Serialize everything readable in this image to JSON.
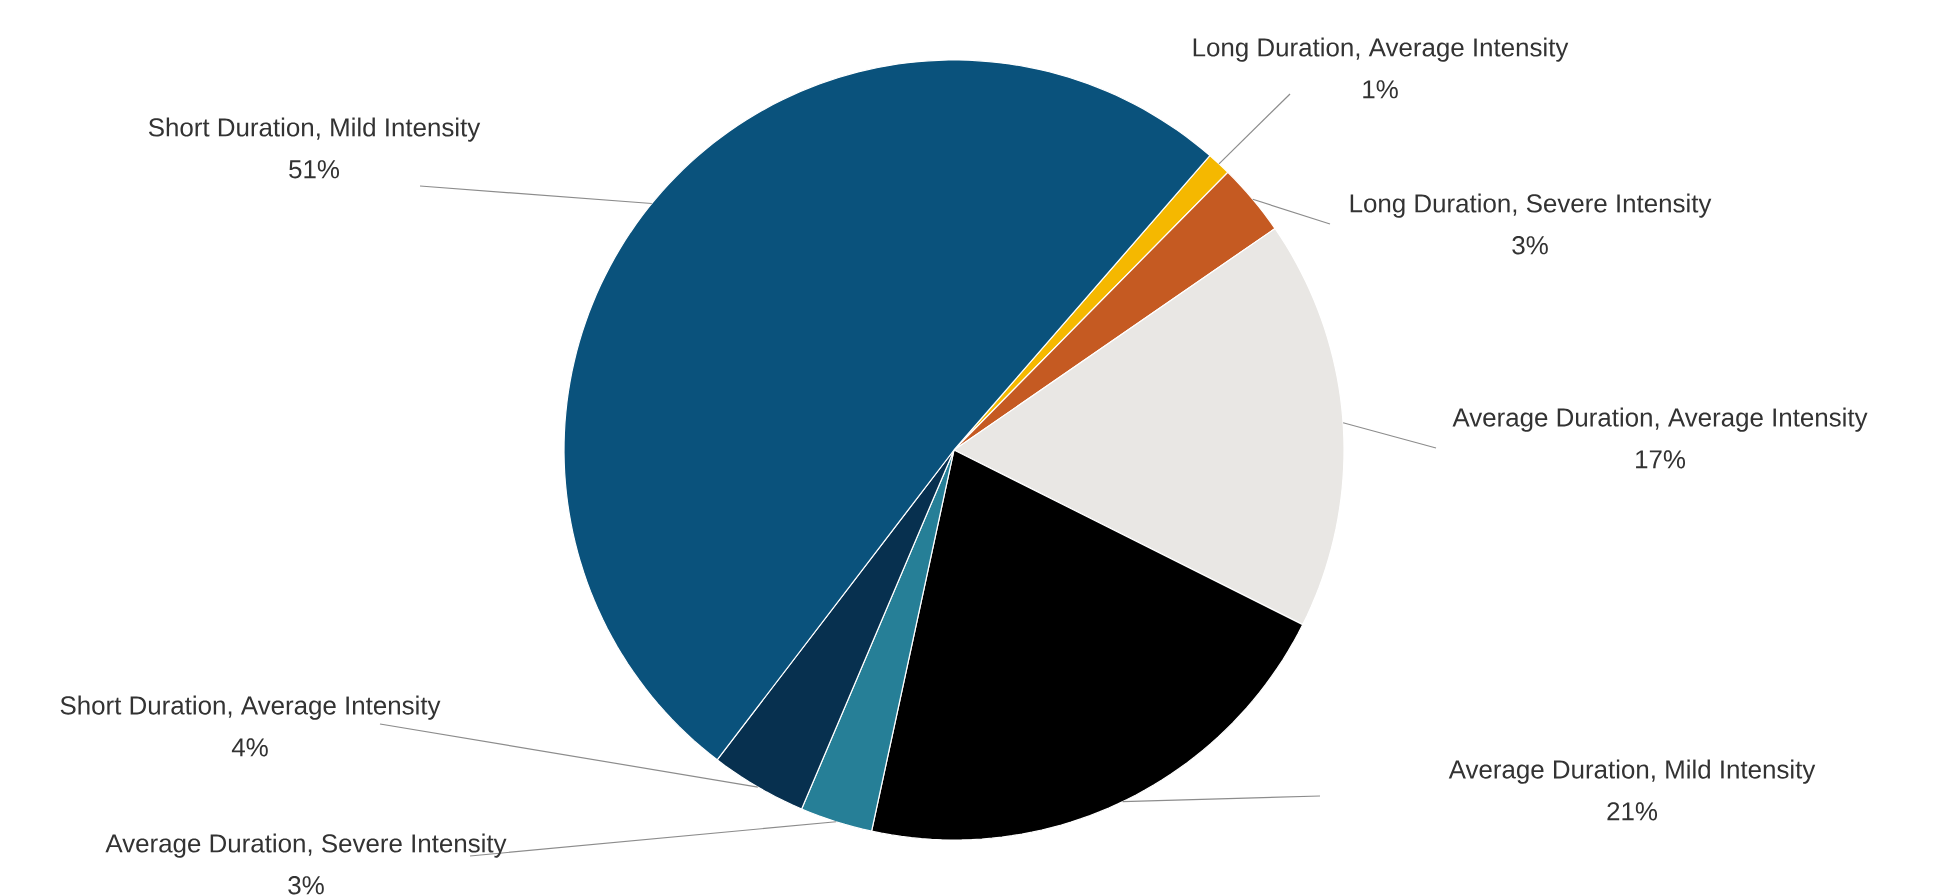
{
  "chart_data": {
    "type": "pie",
    "categories": [
      "Long Duration, Average Intensity",
      "Long Duration, Severe Intensity",
      "Average Duration, Average Intensity",
      "Average Duration, Mild Intensity",
      "Average Duration, Severe Intensity",
      "Short Duration, Average Intensity",
      "Short Duration, Mild Intensity"
    ],
    "values": [
      1,
      3,
      17,
      21,
      3,
      4,
      51
    ],
    "value_labels": [
      "1%",
      "3%",
      "17%",
      "21%",
      "3%",
      "4%",
      "51%"
    ],
    "colors": [
      "#f5b800",
      "#c55a22",
      "#e9e7e4",
      "#000000",
      "#267f97",
      "#07304f",
      "#0a527c"
    ]
  }
}
